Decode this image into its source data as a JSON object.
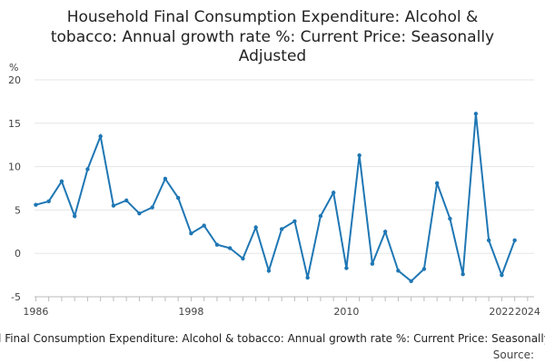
{
  "chart_data": {
    "type": "line",
    "title": "Household Final Consumption Expenditure: Alcohol & tobacco: Annual growth rate %: Current Price: Seasonally Adjusted",
    "title_lines": [
      "Household Final Consumption Expenditure: Alcohol &",
      "tobacco: Annual growth rate %: Current Price: Seasonally",
      "Adjusted"
    ],
    "ylabel": "%",
    "xlabel": "",
    "ylim": [
      -5,
      20
    ],
    "yticks": [
      -5,
      0,
      5,
      10,
      15,
      20
    ],
    "xlim": [
      1985.9,
      2024.5
    ],
    "xticks": [
      1986,
      1998,
      2010,
      2022,
      2024
    ],
    "grid": true,
    "legend": "none",
    "color": "#1f77b4",
    "footer": "Household Final Consumption Expenditure: Alcohol & tobacco: Annual growth rate %: Current Price: Seasonally Adjusted",
    "source_label": "Source:",
    "series": [
      {
        "x": [
          1986,
          1987,
          1988,
          1989,
          1990,
          1991,
          1992,
          1993,
          1994,
          1995,
          1996,
          1997,
          1998,
          1999,
          2000,
          2001,
          2002,
          2003,
          2004,
          2005,
          2006,
          2007,
          2008,
          2009,
          2010,
          2011,
          2012,
          2013,
          2014,
          2015,
          2016,
          2017,
          2018,
          2019,
          2020,
          2021,
          2022,
          2023
        ],
        "values": [
          5.6,
          6.0,
          8.3,
          4.3,
          9.7,
          13.5,
          5.5,
          6.1,
          4.6,
          5.3,
          8.6,
          6.4,
          2.3,
          3.2,
          1.0,
          0.6,
          -0.6,
          3.0,
          -2.0,
          2.8,
          3.7,
          -2.8,
          4.3,
          7.0,
          -1.7,
          11.3,
          -1.2,
          2.5,
          -2.0,
          -3.2,
          -1.8,
          8.1,
          4.0,
          -2.4,
          16.1,
          1.5,
          -2.5,
          1.5
        ]
      }
    ]
  }
}
